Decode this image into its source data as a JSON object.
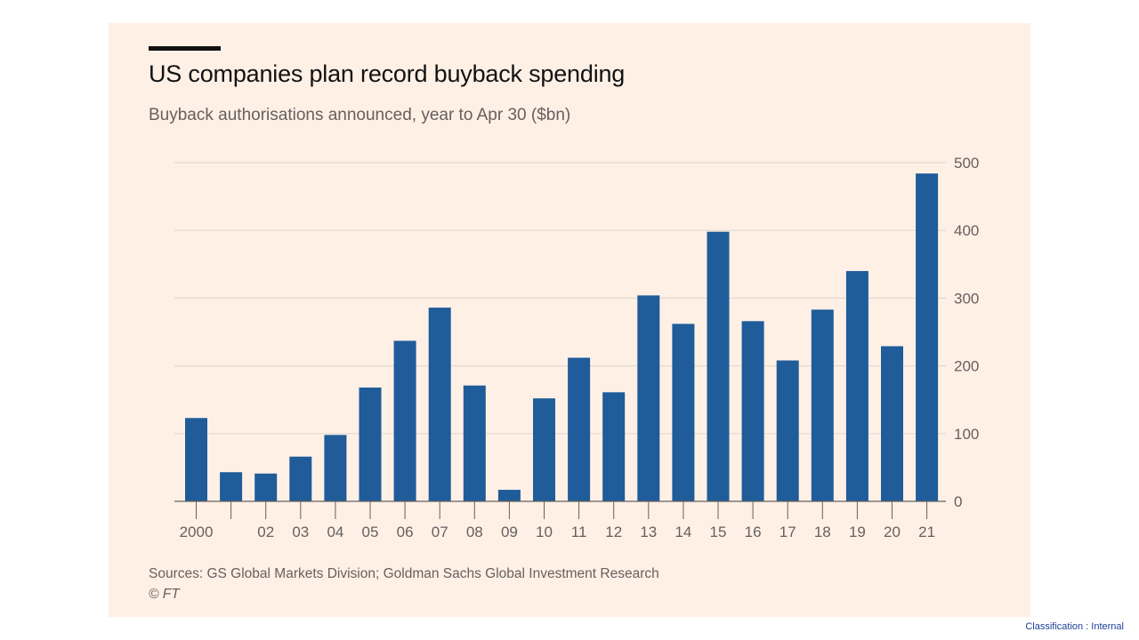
{
  "chart_data": {
    "type": "bar",
    "title": "US companies plan record buyback spending",
    "subtitle": "Buyback authorisations announced, year to Apr 30 ($bn)",
    "categories": [
      "2000",
      "",
      "02",
      "03",
      "04",
      "05",
      "06",
      "07",
      "08",
      "09",
      "10",
      "11",
      "12",
      "13",
      "14",
      "15",
      "16",
      "17",
      "18",
      "19",
      "20",
      "21"
    ],
    "values": [
      123,
      43,
      41,
      66,
      98,
      168,
      237,
      286,
      171,
      17,
      152,
      212,
      161,
      304,
      262,
      398,
      266,
      208,
      283,
      340,
      229,
      484
    ],
    "ylim": [
      0,
      500
    ],
    "yticks": [
      "0",
      "100",
      "200",
      "300",
      "400",
      "500"
    ],
    "y_axis_side": "right",
    "grid": true,
    "bar_color": "#1f5c99",
    "grid_color": "#e3d9d0",
    "axis_color": "#66605c"
  },
  "source": "Sources: GS Global Markets Division; Goldman Sachs Global Investment Research",
  "copyright": "© FT",
  "classification": "Classification : Internal",
  "colors": {
    "card_background": "#fff0e6",
    "text_muted": "#66605c"
  }
}
